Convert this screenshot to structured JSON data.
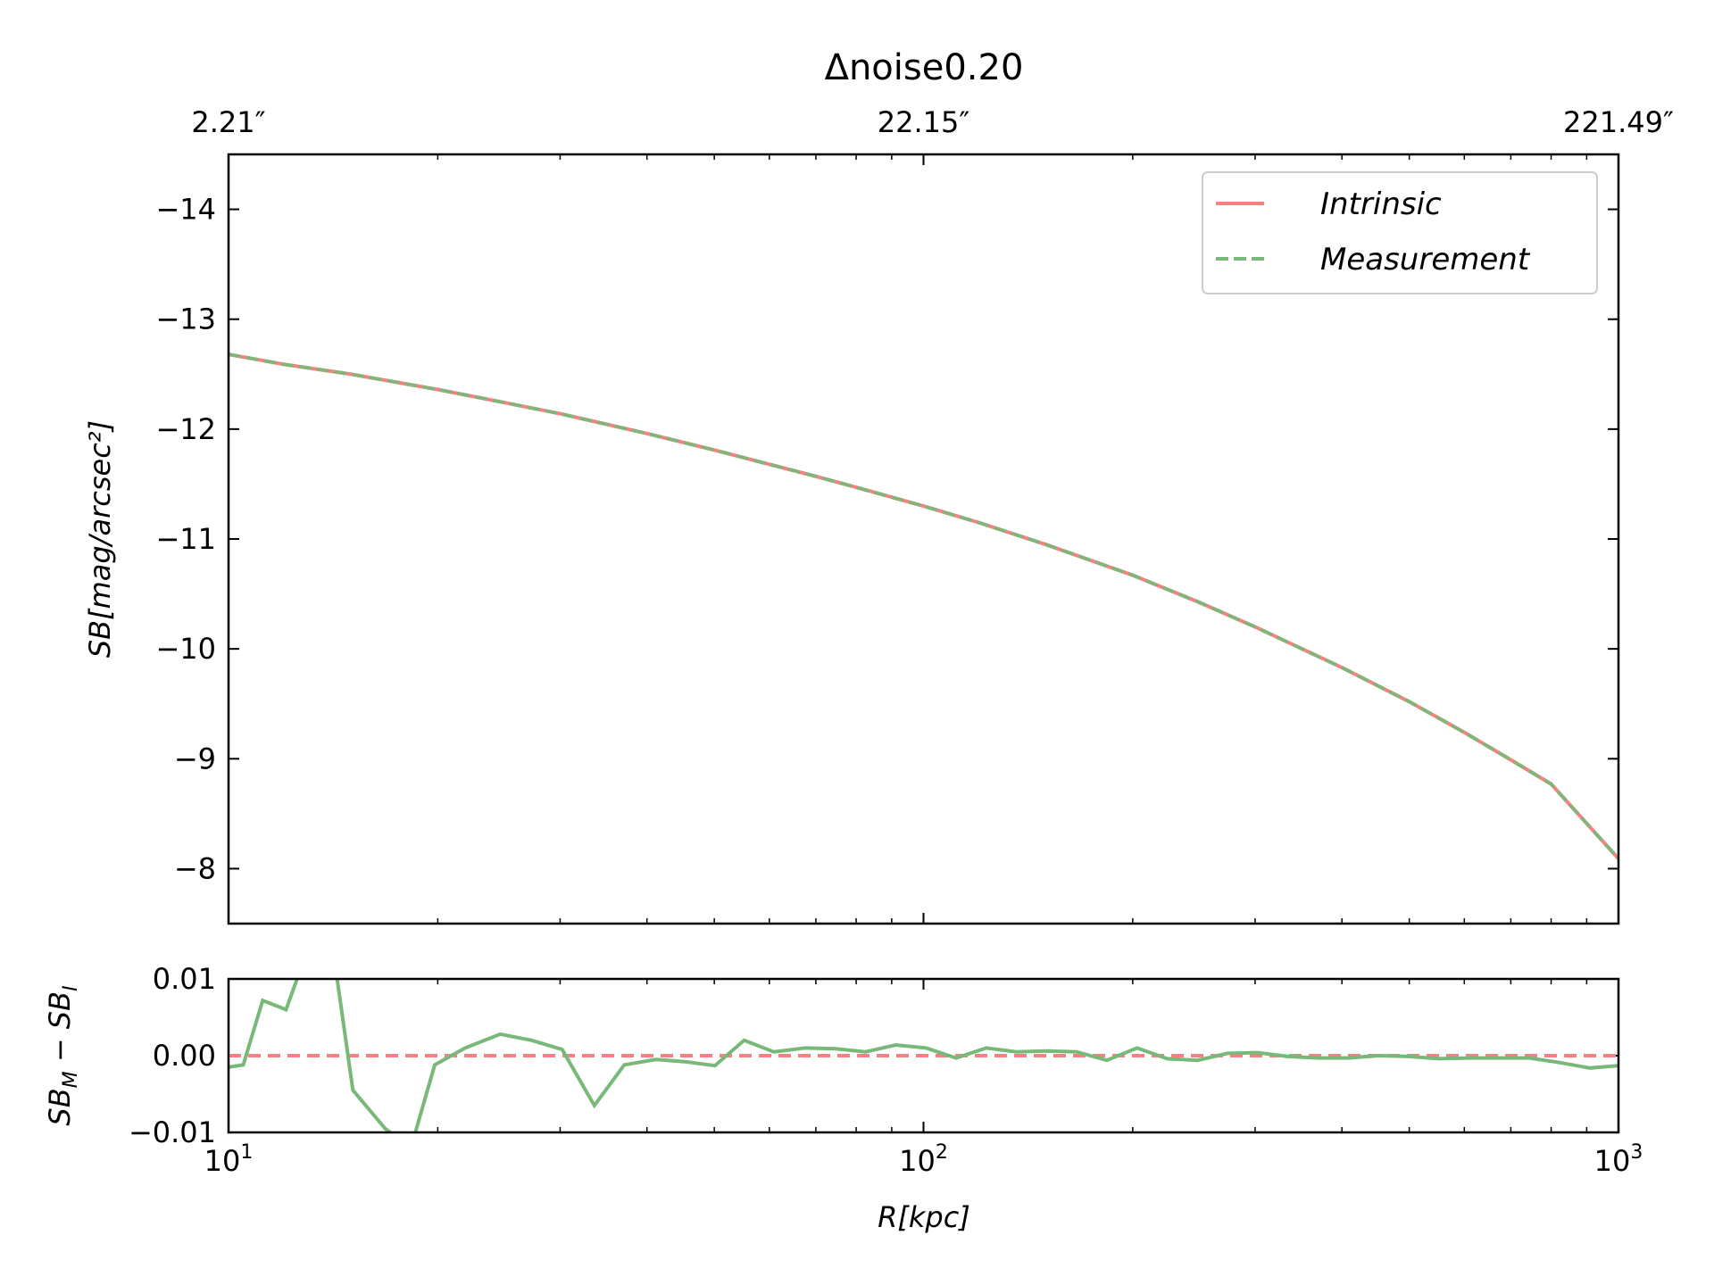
{
  "chart_data": [
    {
      "type": "line",
      "title": "Δnoise0.20",
      "ylabel": "SB[mag/arcsec²]",
      "xscale": "log",
      "xlim": [
        10,
        1000
      ],
      "ylim": [
        -14.5,
        -7.5
      ],
      "y_inverted": true,
      "yticks": [
        -14,
        -13,
        -12,
        -11,
        -10,
        -9,
        -8
      ],
      "ytick_labels": [
        "−14",
        "−13",
        "−12",
        "−11",
        "−10",
        "−9",
        "−8"
      ],
      "secondary_xticks": [
        10,
        100,
        1000
      ],
      "secondary_xtick_labels": [
        "2.21″",
        "22.15″",
        "221.49″"
      ],
      "legend": "top-right",
      "series": [
        {
          "name": "Intrinsic",
          "color": "#f88080",
          "style": "solid",
          "x": [
            10,
            12,
            15,
            20,
            25,
            30,
            40,
            50,
            60,
            70,
            80,
            100,
            120,
            150,
            200,
            250,
            300,
            400,
            500,
            600,
            700,
            800,
            1000
          ],
          "y": [
            -12.68,
            -12.59,
            -12.5,
            -12.36,
            -12.24,
            -12.14,
            -11.96,
            -11.81,
            -11.68,
            -11.57,
            -11.47,
            -11.3,
            -11.15,
            -10.95,
            -10.67,
            -10.42,
            -10.2,
            -9.83,
            -9.52,
            -9.24,
            -8.99,
            -8.77,
            -8.09
          ]
        },
        {
          "name": "Measurement",
          "color": "#78b878",
          "style": "dashed",
          "x": [
            10,
            12,
            15,
            20,
            25,
            30,
            40,
            50,
            60,
            70,
            80,
            100,
            120,
            150,
            200,
            250,
            300,
            400,
            500,
            600,
            700,
            800,
            1000
          ],
          "y": [
            -12.68,
            -12.59,
            -12.5,
            -12.36,
            -12.24,
            -12.14,
            -11.96,
            -11.81,
            -11.68,
            -11.57,
            -11.47,
            -11.3,
            -11.15,
            -10.95,
            -10.67,
            -10.42,
            -10.2,
            -9.83,
            -9.52,
            -9.24,
            -8.99,
            -8.77,
            -8.09
          ]
        }
      ]
    },
    {
      "type": "line",
      "xlabel": "R[kpc]",
      "ylabel": "SB_M − SB_I",
      "xscale": "log",
      "xlim": [
        10,
        1000
      ],
      "ylim": [
        -0.01,
        0.01
      ],
      "yticks": [
        -0.01,
        0.0,
        0.01
      ],
      "ytick_labels": [
        "−0.01",
        "0.00",
        "0.01"
      ],
      "xticks": [
        10,
        100,
        1000
      ],
      "xtick_labels": [
        "10",
        "10",
        "10"
      ],
      "xtick_exponents": [
        "1",
        "2",
        "3"
      ],
      "series": [
        {
          "name": "zero",
          "color": "#f88080",
          "style": "dashed",
          "x": [
            10,
            1000
          ],
          "y": [
            0,
            0
          ]
        },
        {
          "name": "residual",
          "color": "#78b878",
          "style": "solid",
          "x": [
            10,
            10.5,
            11.2,
            12.1,
            12.9,
            14.2,
            15.1,
            16.8,
            18.3,
            19.8,
            21.9,
            24.6,
            27.3,
            30.2,
            33.6,
            37.1,
            41.2,
            45.5,
            50.1,
            55.2,
            60.9,
            67.5,
            74.8,
            82.5,
            91.2,
            100.8,
            111.4,
            123.1,
            136.1,
            150.3,
            166.1,
            183.6,
            202.9,
            224.2,
            247.8,
            273.8,
            302.6,
            334.4,
            369.6,
            408.5,
            451.4,
            498.9,
            551.3,
            609.3,
            673.4,
            744.2,
            822.4,
            908.9,
            1000
          ],
          "y": [
            -0.0015,
            -0.0012,
            0.0072,
            0.006,
            0.013,
            0.0125,
            -0.0045,
            -0.0095,
            -0.012,
            -0.0012,
            0.001,
            0.0028,
            0.002,
            0.0008,
            -0.0065,
            -0.0012,
            -0.0005,
            -0.0008,
            -0.0013,
            0.002,
            0.0005,
            0.001,
            0.0009,
            0.0005,
            0.0014,
            0.001,
            -0.0003,
            0.001,
            0.0005,
            0.0006,
            0.0005,
            -0.0006,
            0.001,
            -0.0004,
            -0.0006,
            0.0003,
            0.0004,
            -0.0001,
            -0.0003,
            -0.0003,
            0.0,
            -0.0001,
            -0.0004,
            -0.0003,
            -0.0003,
            -0.0003,
            -0.0009,
            -0.0016,
            -0.0013
          ]
        }
      ]
    }
  ]
}
